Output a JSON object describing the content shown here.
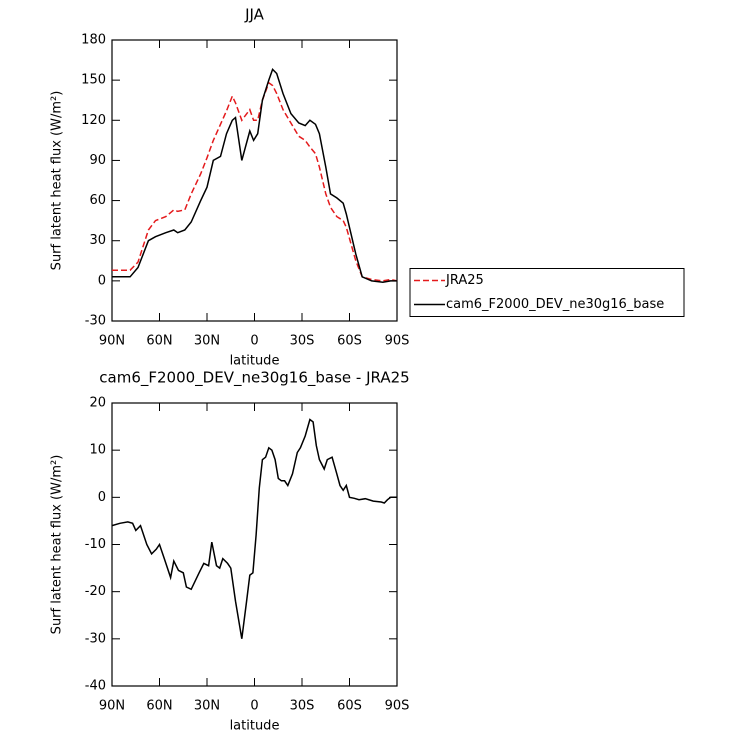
{
  "chart_data": [
    {
      "type": "line",
      "title": "JJA",
      "xlabel": "latitude",
      "ylabel": "Surf latent heat flux (W/m²)",
      "x": [
        90,
        78.6,
        73.6,
        67,
        62.5,
        56,
        51,
        48.5,
        44,
        40,
        34,
        30,
        26,
        21.5,
        17.7,
        14,
        12,
        8,
        3,
        0.6,
        -2,
        -5,
        -9,
        -11.4,
        -14,
        -18,
        -23,
        -28,
        -32,
        -35,
        -38.5,
        -41,
        -45,
        -48,
        -52,
        -56,
        -58,
        -64,
        -68,
        -74,
        -81,
        -86,
        -90
      ],
      "series": [
        {
          "name": "JRA25",
          "color": "#e41a1c",
          "line_style": "dashed",
          "values": [
            8,
            8,
            14,
            38,
            45,
            48,
            53,
            52,
            53,
            65,
            80,
            92,
            105,
            117,
            127,
            138,
            133,
            120,
            128,
            120,
            120,
            135,
            148,
            146,
            140,
            128,
            118,
            108,
            105,
            100,
            95,
            85,
            65,
            55,
            48,
            45,
            40,
            15,
            3,
            1,
            0,
            1,
            0
          ]
        },
        {
          "name": "cam6_F2000_DEV_ne30g16_base",
          "color": "#000000",
          "line_style": "solid",
          "values": [
            3,
            3,
            10,
            30,
            33,
            36,
            38,
            36,
            38,
            44,
            60,
            70,
            90,
            93,
            110,
            120,
            122,
            90,
            112,
            105,
            110,
            135,
            150,
            158,
            155,
            140,
            125,
            118,
            116,
            120,
            117,
            110,
            85,
            65,
            62,
            58,
            50,
            20,
            3,
            0,
            -1,
            0,
            0
          ]
        }
      ],
      "xlim": [
        90,
        -90
      ],
      "xticks": [
        {
          "value": 90,
          "label": "90N"
        },
        {
          "value": 60,
          "label": "60N"
        },
        {
          "value": 30,
          "label": "30N"
        },
        0,
        {
          "value": -30,
          "label": "30S"
        },
        {
          "value": -60,
          "label": "60S"
        },
        {
          "value": -90,
          "label": "90S"
        }
      ],
      "ylim": [
        -30,
        180
      ],
      "yticks": [
        -30,
        0,
        30,
        60,
        90,
        120,
        150,
        180
      ],
      "legend": "right"
    },
    {
      "type": "line",
      "title": "cam6_F2000_DEV_ne30g16_base - JRA25",
      "xlabel": "latitude",
      "ylabel": "Surf latent heat flux (W/m²)",
      "x": [
        90,
        85,
        80,
        77,
        75,
        72,
        68,
        65,
        62,
        60,
        57,
        53,
        51,
        48,
        45,
        43,
        40,
        35,
        32,
        29,
        27,
        24,
        22,
        20,
        17,
        15,
        12,
        8,
        5,
        3,
        1,
        -1,
        -3,
        -5,
        -7,
        -9,
        -11,
        -13,
        -15,
        -17,
        -19,
        -21,
        -24,
        -27,
        -29,
        -32,
        -35,
        -37,
        -39,
        -41,
        -44,
        -46,
        -49,
        -52,
        -54,
        -56,
        -58,
        -60,
        -63,
        -66,
        -70,
        -75,
        -80,
        -82,
        -84,
        -86,
        -90
      ],
      "series": [
        {
          "color": "#000000",
          "line_style": "solid",
          "values": [
            -6,
            -5.5,
            -5.2,
            -5.5,
            -7,
            -6,
            -10,
            -12,
            -11,
            -10,
            -13,
            -17,
            -13.5,
            -15.5,
            -16,
            -19,
            -19.5,
            -16,
            -14,
            -14.5,
            -9.5,
            -14.5,
            -15,
            -13,
            -14,
            -15,
            -22,
            -30,
            -22,
            -16.5,
            -16,
            -8,
            2,
            8,
            8.5,
            10.5,
            10,
            8,
            4,
            3.5,
            3.5,
            2.5,
            5,
            9.5,
            10.5,
            13,
            16.5,
            16,
            11,
            8,
            6,
            8,
            8.5,
            5,
            2.5,
            1.5,
            2.5,
            0,
            -0.2,
            -0.5,
            -0.3,
            -0.8,
            -1,
            -1.2,
            -0.5,
            0,
            0
          ]
        }
      ],
      "xlim": [
        90,
        -90
      ],
      "xticks": [
        {
          "value": 90,
          "label": "90N"
        },
        {
          "value": 60,
          "label": "60N"
        },
        {
          "value": 30,
          "label": "30N"
        },
        0,
        {
          "value": -30,
          "label": "30S"
        },
        {
          "value": -60,
          "label": "60S"
        },
        {
          "value": -90,
          "label": "90S"
        }
      ],
      "ylim": [
        -40,
        20
      ],
      "yticks": [
        -40,
        -30,
        -20,
        -10,
        0,
        10,
        20
      ]
    }
  ]
}
